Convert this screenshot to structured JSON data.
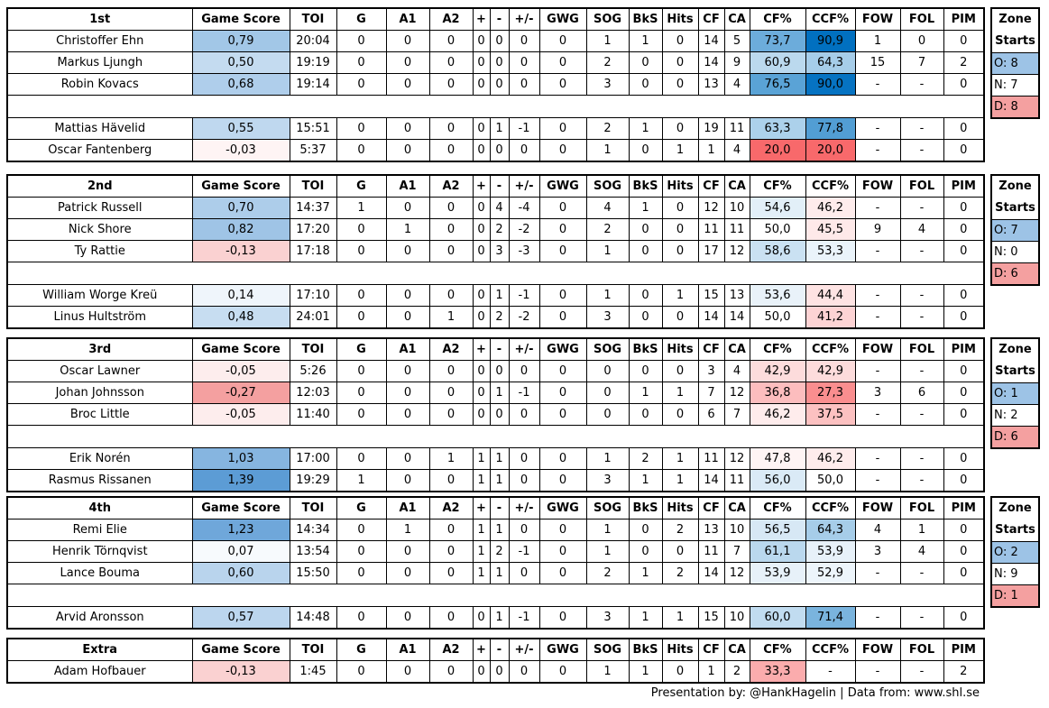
{
  "headers": [
    "Game Score",
    "TOI",
    "G",
    "A1",
    "A2",
    "+",
    "-",
    "+/-",
    "GWG",
    "SOG",
    "BkS",
    "Hits",
    "CF",
    "CA",
    "CF%",
    "CCF%",
    "FOW",
    "FOL",
    "PIM"
  ],
  "zone_label": "Zone Starts",
  "colors": {
    "blue": "#0070c0",
    "gs_blue": "#5b9bd5",
    "red": "#f8696b",
    "gs_red": "#f4a0a0"
  },
  "groups": [
    {
      "title": "1st",
      "forwards": [
        [
          "Christoffer Ehn",
          "0,79",
          "20:04",
          "0",
          "0",
          "0",
          "0",
          "0",
          "0",
          "0",
          "1",
          "1",
          "0",
          "14",
          "5",
          "73,7",
          "90,9",
          "1",
          "0",
          "0"
        ],
        [
          "Markus Ljungh",
          "0,50",
          "19:19",
          "0",
          "0",
          "0",
          "0",
          "0",
          "0",
          "0",
          "2",
          "0",
          "0",
          "14",
          "9",
          "60,9",
          "64,3",
          "15",
          "7",
          "2"
        ],
        [
          "Robin Kovacs",
          "0,68",
          "19:14",
          "0",
          "0",
          "0",
          "0",
          "0",
          "0",
          "0",
          "3",
          "0",
          "0",
          "13",
          "4",
          "76,5",
          "90,0",
          "-",
          "-",
          "0"
        ]
      ],
      "defense": [
        [
          "Mattias Hävelid",
          "0,55",
          "15:51",
          "0",
          "0",
          "0",
          "0",
          "1",
          "-1",
          "0",
          "2",
          "1",
          "0",
          "19",
          "11",
          "63,3",
          "77,8",
          "-",
          "-",
          "0"
        ],
        [
          "Oscar Fantenberg",
          "-0,03",
          "5:37",
          "0",
          "0",
          "0",
          "0",
          "0",
          "0",
          "0",
          "1",
          "0",
          "1",
          "1",
          "4",
          "20,0",
          "20,0",
          "-",
          "-",
          "0"
        ]
      ],
      "zone": {
        "o": "O: 8",
        "n": "N: 7",
        "d": "D: 8"
      }
    },
    {
      "title": "2nd",
      "forwards": [
        [
          "Patrick Russell",
          "0,70",
          "14:37",
          "1",
          "0",
          "0",
          "0",
          "4",
          "-4",
          "0",
          "4",
          "1",
          "0",
          "12",
          "10",
          "54,6",
          "46,2",
          "-",
          "-",
          "0"
        ],
        [
          "Nick Shore",
          "0,82",
          "17:20",
          "0",
          "1",
          "0",
          "0",
          "2",
          "-2",
          "0",
          "2",
          "0",
          "0",
          "11",
          "11",
          "50,0",
          "45,5",
          "9",
          "4",
          "0"
        ],
        [
          "Ty Rattie",
          "-0,13",
          "17:18",
          "0",
          "0",
          "0",
          "0",
          "3",
          "-3",
          "0",
          "1",
          "0",
          "0",
          "17",
          "12",
          "58,6",
          "53,3",
          "-",
          "-",
          "0"
        ]
      ],
      "defense": [
        [
          "William Worge Kreü",
          "0,14",
          "17:10",
          "0",
          "0",
          "0",
          "0",
          "1",
          "-1",
          "0",
          "1",
          "0",
          "1",
          "15",
          "13",
          "53,6",
          "44,4",
          "-",
          "-",
          "0"
        ],
        [
          "Linus Hultström",
          "0,48",
          "24:01",
          "0",
          "0",
          "1",
          "0",
          "2",
          "-2",
          "0",
          "3",
          "0",
          "0",
          "14",
          "14",
          "50,0",
          "41,2",
          "-",
          "-",
          "0"
        ]
      ],
      "zone": {
        "o": "O: 7",
        "n": "N: 0",
        "d": "D: 6"
      }
    },
    {
      "title": "3rd",
      "forwards": [
        [
          "Oscar Lawner",
          "-0,05",
          "5:26",
          "0",
          "0",
          "0",
          "0",
          "0",
          "0",
          "0",
          "0",
          "0",
          "0",
          "3",
          "4",
          "42,9",
          "42,9",
          "-",
          "-",
          "0"
        ],
        [
          "Johan Johnsson",
          "-0,27",
          "12:03",
          "0",
          "0",
          "0",
          "0",
          "1",
          "-1",
          "0",
          "0",
          "1",
          "1",
          "7",
          "12",
          "36,8",
          "27,3",
          "3",
          "6",
          "0"
        ],
        [
          "Broc Little",
          "-0,05",
          "11:40",
          "0",
          "0",
          "0",
          "0",
          "0",
          "0",
          "0",
          "0",
          "0",
          "0",
          "6",
          "7",
          "46,2",
          "37,5",
          "-",
          "-",
          "0"
        ]
      ],
      "defense": [
        [
          "Erik Norén",
          "1,03",
          "17:00",
          "0",
          "0",
          "1",
          "1",
          "1",
          "0",
          "0",
          "1",
          "2",
          "1",
          "11",
          "12",
          "47,8",
          "46,2",
          "-",
          "-",
          "0"
        ],
        [
          "Rasmus Rissanen",
          "1,39",
          "19:29",
          "1",
          "0",
          "0",
          "1",
          "1",
          "0",
          "0",
          "3",
          "1",
          "1",
          "14",
          "11",
          "56,0",
          "50,0",
          "-",
          "-",
          "0"
        ]
      ],
      "zone": {
        "o": "O: 1",
        "n": "N: 2",
        "d": "D: 6"
      }
    },
    {
      "title": "4th",
      "forwards": [
        [
          "Remi Elie",
          "1,23",
          "14:34",
          "0",
          "1",
          "0",
          "1",
          "1",
          "0",
          "0",
          "1",
          "0",
          "2",
          "13",
          "10",
          "56,5",
          "64,3",
          "4",
          "1",
          "0"
        ],
        [
          "Henrik Törnqvist",
          "0,07",
          "13:54",
          "0",
          "0",
          "0",
          "1",
          "2",
          "-1",
          "0",
          "1",
          "0",
          "0",
          "11",
          "7",
          "61,1",
          "53,9",
          "3",
          "4",
          "0"
        ],
        [
          "Lance Bouma",
          "0,60",
          "15:50",
          "0",
          "0",
          "0",
          "1",
          "1",
          "0",
          "0",
          "2",
          "1",
          "2",
          "14",
          "12",
          "53,9",
          "52,9",
          "-",
          "-",
          "0"
        ]
      ],
      "defense": [
        [
          "Arvid Aronsson",
          "0,57",
          "14:48",
          "0",
          "0",
          "0",
          "0",
          "1",
          "-1",
          "0",
          "3",
          "1",
          "1",
          "15",
          "10",
          "60,0",
          "71,4",
          "-",
          "-",
          "0"
        ]
      ],
      "zone": {
        "o": "O: 2",
        "n": "N: 9",
        "d": "D: 1"
      }
    },
    {
      "title": "Extra",
      "forwards": [
        [
          "Adam Hofbauer",
          "-0,13",
          "1:45",
          "0",
          "0",
          "0",
          "0",
          "0",
          "0",
          "0",
          "1",
          "1",
          "0",
          "1",
          "2",
          "33,3",
          "-",
          "-",
          "-",
          "2"
        ]
      ],
      "defense": [],
      "zone": null
    }
  ],
  "footer": "Presentation by: @HankHagelin | Data from: www.shl.se"
}
